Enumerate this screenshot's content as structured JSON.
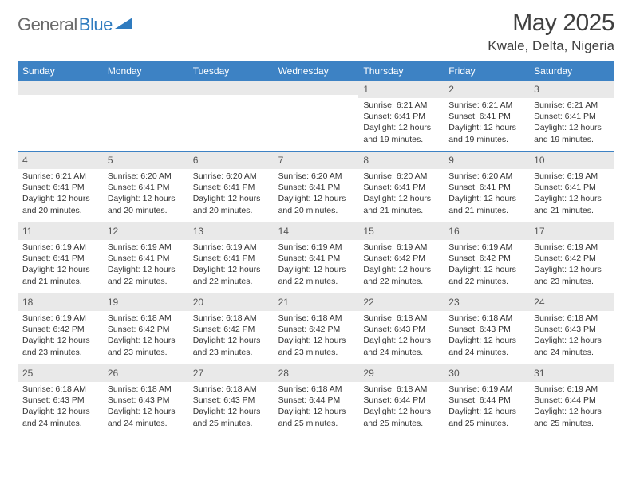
{
  "logo": {
    "text1": "General",
    "text2": "Blue"
  },
  "title": "May 2025",
  "location": "Kwale, Delta, Nigeria",
  "colors": {
    "header_bg": "#3d82c4",
    "header_text": "#ffffff",
    "daynum_bg": "#e9e9e9",
    "border": "#3d82c4",
    "body_text": "#333333",
    "title_text": "#404040",
    "logo_gray": "#6a6a6a",
    "logo_blue": "#2f7bbf"
  },
  "day_names": [
    "Sunday",
    "Monday",
    "Tuesday",
    "Wednesday",
    "Thursday",
    "Friday",
    "Saturday"
  ],
  "weeks": [
    [
      {
        "blank": true
      },
      {
        "blank": true
      },
      {
        "blank": true
      },
      {
        "blank": true
      },
      {
        "n": "1",
        "sr": "6:21 AM",
        "ss": "6:41 PM",
        "dl": "12 hours and 19 minutes."
      },
      {
        "n": "2",
        "sr": "6:21 AM",
        "ss": "6:41 PM",
        "dl": "12 hours and 19 minutes."
      },
      {
        "n": "3",
        "sr": "6:21 AM",
        "ss": "6:41 PM",
        "dl": "12 hours and 19 minutes."
      }
    ],
    [
      {
        "n": "4",
        "sr": "6:21 AM",
        "ss": "6:41 PM",
        "dl": "12 hours and 20 minutes."
      },
      {
        "n": "5",
        "sr": "6:20 AM",
        "ss": "6:41 PM",
        "dl": "12 hours and 20 minutes."
      },
      {
        "n": "6",
        "sr": "6:20 AM",
        "ss": "6:41 PM",
        "dl": "12 hours and 20 minutes."
      },
      {
        "n": "7",
        "sr": "6:20 AM",
        "ss": "6:41 PM",
        "dl": "12 hours and 20 minutes."
      },
      {
        "n": "8",
        "sr": "6:20 AM",
        "ss": "6:41 PM",
        "dl": "12 hours and 21 minutes."
      },
      {
        "n": "9",
        "sr": "6:20 AM",
        "ss": "6:41 PM",
        "dl": "12 hours and 21 minutes."
      },
      {
        "n": "10",
        "sr": "6:19 AM",
        "ss": "6:41 PM",
        "dl": "12 hours and 21 minutes."
      }
    ],
    [
      {
        "n": "11",
        "sr": "6:19 AM",
        "ss": "6:41 PM",
        "dl": "12 hours and 21 minutes."
      },
      {
        "n": "12",
        "sr": "6:19 AM",
        "ss": "6:41 PM",
        "dl": "12 hours and 22 minutes."
      },
      {
        "n": "13",
        "sr": "6:19 AM",
        "ss": "6:41 PM",
        "dl": "12 hours and 22 minutes."
      },
      {
        "n": "14",
        "sr": "6:19 AM",
        "ss": "6:41 PM",
        "dl": "12 hours and 22 minutes."
      },
      {
        "n": "15",
        "sr": "6:19 AM",
        "ss": "6:42 PM",
        "dl": "12 hours and 22 minutes."
      },
      {
        "n": "16",
        "sr": "6:19 AM",
        "ss": "6:42 PM",
        "dl": "12 hours and 22 minutes."
      },
      {
        "n": "17",
        "sr": "6:19 AM",
        "ss": "6:42 PM",
        "dl": "12 hours and 23 minutes."
      }
    ],
    [
      {
        "n": "18",
        "sr": "6:19 AM",
        "ss": "6:42 PM",
        "dl": "12 hours and 23 minutes."
      },
      {
        "n": "19",
        "sr": "6:18 AM",
        "ss": "6:42 PM",
        "dl": "12 hours and 23 minutes."
      },
      {
        "n": "20",
        "sr": "6:18 AM",
        "ss": "6:42 PM",
        "dl": "12 hours and 23 minutes."
      },
      {
        "n": "21",
        "sr": "6:18 AM",
        "ss": "6:42 PM",
        "dl": "12 hours and 23 minutes."
      },
      {
        "n": "22",
        "sr": "6:18 AM",
        "ss": "6:43 PM",
        "dl": "12 hours and 24 minutes."
      },
      {
        "n": "23",
        "sr": "6:18 AM",
        "ss": "6:43 PM",
        "dl": "12 hours and 24 minutes."
      },
      {
        "n": "24",
        "sr": "6:18 AM",
        "ss": "6:43 PM",
        "dl": "12 hours and 24 minutes."
      }
    ],
    [
      {
        "n": "25",
        "sr": "6:18 AM",
        "ss": "6:43 PM",
        "dl": "12 hours and 24 minutes."
      },
      {
        "n": "26",
        "sr": "6:18 AM",
        "ss": "6:43 PM",
        "dl": "12 hours and 24 minutes."
      },
      {
        "n": "27",
        "sr": "6:18 AM",
        "ss": "6:43 PM",
        "dl": "12 hours and 25 minutes."
      },
      {
        "n": "28",
        "sr": "6:18 AM",
        "ss": "6:44 PM",
        "dl": "12 hours and 25 minutes."
      },
      {
        "n": "29",
        "sr": "6:18 AM",
        "ss": "6:44 PM",
        "dl": "12 hours and 25 minutes."
      },
      {
        "n": "30",
        "sr": "6:19 AM",
        "ss": "6:44 PM",
        "dl": "12 hours and 25 minutes."
      },
      {
        "n": "31",
        "sr": "6:19 AM",
        "ss": "6:44 PM",
        "dl": "12 hours and 25 minutes."
      }
    ]
  ],
  "labels": {
    "sunrise": "Sunrise: ",
    "sunset": "Sunset: ",
    "daylight": "Daylight: "
  }
}
